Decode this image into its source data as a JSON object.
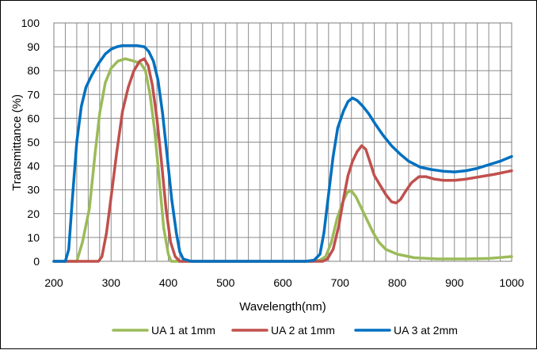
{
  "chart_data": {
    "type": "line",
    "title": "",
    "xlabel": "Wavelength(nm)",
    "ylabel": "Transmittance (%)",
    "xlim": [
      200,
      1000
    ],
    "ylim": [
      0,
      100
    ],
    "x_ticks": [
      "200",
      "300",
      "400",
      "500",
      "600",
      "700",
      "800",
      "900",
      "1000"
    ],
    "y_ticks": [
      "0",
      "10",
      "20",
      "30",
      "40",
      "50",
      "60",
      "70",
      "80",
      "90",
      "100"
    ],
    "grid": true,
    "legend_position": "bottom",
    "series": [
      {
        "name": "UA 1 at 1mm",
        "color": "#9bbb59",
        "points": [
          [
            200,
            0
          ],
          [
            240,
            0
          ],
          [
            250,
            8
          ],
          [
            262,
            22
          ],
          [
            272,
            45
          ],
          [
            280,
            62
          ],
          [
            290,
            75
          ],
          [
            300,
            81
          ],
          [
            312,
            84
          ],
          [
            325,
            85
          ],
          [
            340,
            84
          ],
          [
            352,
            83
          ],
          [
            360,
            80
          ],
          [
            368,
            70
          ],
          [
            376,
            55
          ],
          [
            384,
            35
          ],
          [
            392,
            14
          ],
          [
            400,
            3
          ],
          [
            405,
            0
          ],
          [
            500,
            0
          ],
          [
            650,
            0
          ],
          [
            665,
            0.5
          ],
          [
            675,
            2
          ],
          [
            685,
            8
          ],
          [
            695,
            18
          ],
          [
            705,
            25
          ],
          [
            713,
            29
          ],
          [
            720,
            29.5
          ],
          [
            728,
            27
          ],
          [
            738,
            22
          ],
          [
            748,
            17
          ],
          [
            758,
            12
          ],
          [
            768,
            8
          ],
          [
            780,
            5
          ],
          [
            800,
            3
          ],
          [
            830,
            1.5
          ],
          [
            870,
            1
          ],
          [
            920,
            1
          ],
          [
            960,
            1.2
          ],
          [
            1000,
            2
          ]
        ]
      },
      {
        "name": "UA 2 at 1mm",
        "color": "#c0504d",
        "points": [
          [
            200,
            0
          ],
          [
            278,
            0
          ],
          [
            284,
            2
          ],
          [
            292,
            12
          ],
          [
            300,
            27
          ],
          [
            310,
            46
          ],
          [
            320,
            63
          ],
          [
            330,
            73
          ],
          [
            340,
            80
          ],
          [
            350,
            84
          ],
          [
            358,
            85
          ],
          [
            365,
            82
          ],
          [
            372,
            74
          ],
          [
            380,
            60
          ],
          [
            388,
            42
          ],
          [
            396,
            22
          ],
          [
            404,
            8
          ],
          [
            412,
            2
          ],
          [
            420,
            0
          ],
          [
            500,
            0
          ],
          [
            670,
            0
          ],
          [
            678,
            1
          ],
          [
            688,
            5
          ],
          [
            698,
            15
          ],
          [
            706,
            26
          ],
          [
            714,
            36
          ],
          [
            722,
            42
          ],
          [
            730,
            46
          ],
          [
            738,
            48.5
          ],
          [
            745,
            47
          ],
          [
            752,
            42
          ],
          [
            760,
            36
          ],
          [
            770,
            32
          ],
          [
            780,
            28
          ],
          [
            790,
            25
          ],
          [
            798,
            24.5
          ],
          [
            806,
            26
          ],
          [
            815,
            29.5
          ],
          [
            825,
            33
          ],
          [
            838,
            35.5
          ],
          [
            850,
            35.5
          ],
          [
            865,
            34.5
          ],
          [
            880,
            34
          ],
          [
            900,
            34
          ],
          [
            920,
            34.5
          ],
          [
            945,
            35.5
          ],
          [
            970,
            36.5
          ],
          [
            1000,
            38
          ]
        ]
      },
      {
        "name": "UA 3 at 2mm",
        "color": "#0070c0",
        "points": [
          [
            200,
            0
          ],
          [
            220,
            0
          ],
          [
            226,
            5
          ],
          [
            232,
            25
          ],
          [
            240,
            50
          ],
          [
            248,
            65
          ],
          [
            256,
            73
          ],
          [
            266,
            78
          ],
          [
            278,
            83
          ],
          [
            290,
            87
          ],
          [
            300,
            89
          ],
          [
            310,
            90
          ],
          [
            320,
            90.5
          ],
          [
            330,
            90.5
          ],
          [
            345,
            90.5
          ],
          [
            358,
            90
          ],
          [
            366,
            88
          ],
          [
            374,
            84
          ],
          [
            382,
            76
          ],
          [
            390,
            62
          ],
          [
            398,
            44
          ],
          [
            406,
            26
          ],
          [
            414,
            12
          ],
          [
            420,
            4
          ],
          [
            426,
            1
          ],
          [
            440,
            0
          ],
          [
            500,
            0
          ],
          [
            640,
            0
          ],
          [
            655,
            0.5
          ],
          [
            665,
            3
          ],
          [
            672,
            12
          ],
          [
            680,
            28
          ],
          [
            688,
            44
          ],
          [
            696,
            56
          ],
          [
            706,
            63
          ],
          [
            714,
            67
          ],
          [
            722,
            68.5
          ],
          [
            730,
            67.5
          ],
          [
            740,
            65
          ],
          [
            750,
            62
          ],
          [
            762,
            57.5
          ],
          [
            775,
            53
          ],
          [
            790,
            48.5
          ],
          [
            805,
            45
          ],
          [
            820,
            42
          ],
          [
            840,
            39.5
          ],
          [
            860,
            38.5
          ],
          [
            880,
            37.8
          ],
          [
            900,
            37.5
          ],
          [
            920,
            38
          ],
          [
            940,
            39
          ],
          [
            960,
            40.5
          ],
          [
            980,
            42
          ],
          [
            1000,
            44
          ]
        ]
      }
    ]
  }
}
